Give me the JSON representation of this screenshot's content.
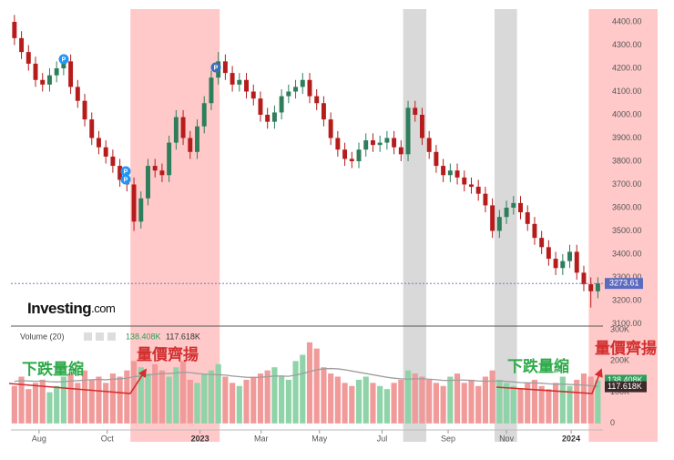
{
  "chart_data": {
    "type": "candlestick",
    "logo": "Investing",
    "logo_suffix": ".com",
    "xlim": [
      0,
      92
    ],
    "xticks": [
      {
        "value": 4,
        "label": "Aug"
      },
      {
        "value": 13.7,
        "label": "Oct"
      },
      {
        "value": 26.9,
        "label": "2023"
      },
      {
        "value": 35.6,
        "label": "Mar"
      },
      {
        "value": 43.9,
        "label": "May"
      },
      {
        "value": 52.8,
        "label": "Jul"
      },
      {
        "value": 62.2,
        "label": "Sep"
      },
      {
        "value": 70.5,
        "label": "Nov"
      },
      {
        "value": 79.7,
        "label": "2024"
      }
    ],
    "ylim": [
      3090,
      4455
    ],
    "yticks": [
      {
        "value": 3100,
        "label": "3100.00"
      },
      {
        "value": 3200,
        "label": "3200.00"
      },
      {
        "value": 3300,
        "label": "3300.00"
      },
      {
        "value": 3400,
        "label": "3400.00"
      },
      {
        "value": 3500,
        "label": "3500.00"
      },
      {
        "value": 3600,
        "label": "3600.00"
      },
      {
        "value": 3700,
        "label": "3700.00"
      },
      {
        "value": 3800,
        "label": "3800.00"
      },
      {
        "value": 3900,
        "label": "3900.00"
      },
      {
        "value": 4000,
        "label": "4000.00"
      },
      {
        "value": 4100,
        "label": "4100.00"
      },
      {
        "value": 4200,
        "label": "4200.00"
      },
      {
        "value": 4300,
        "label": "4300.00"
      },
      {
        "value": 4400,
        "label": "4400.00"
      }
    ],
    "up_color": "#2e7d5b",
    "down_color": "#b71c1c",
    "open": [
      4400,
      4330,
      4270,
      4220,
      4150,
      4130,
      4170,
      4200,
      4230,
      4120,
      4060,
      3980,
      3900,
      3860,
      3820,
      3780,
      3720,
      3700,
      3540,
      3640,
      3780,
      3760,
      3740,
      3880,
      3990,
      3900,
      3840,
      3950,
      4050,
      4160,
      4230,
      4180,
      4130,
      4150,
      4100,
      4070,
      4000,
      3970,
      4010,
      4080,
      4100,
      4120,
      4150,
      4080,
      4050,
      3980,
      3900,
      3850,
      3810,
      3800,
      3850,
      3890,
      3870,
      3880,
      3900,
      3860,
      3830,
      4030,
      4000,
      3900,
      3840,
      3780,
      3740,
      3760,
      3730,
      3700,
      3690,
      3660,
      3610,
      3500,
      3560,
      3600,
      3620,
      3580,
      3530,
      3470,
      3430,
      3380,
      3340,
      3370,
      3410,
      3320,
      3270,
      3240
    ],
    "high": [
      4430,
      4360,
      4300,
      4250,
      4180,
      4200,
      4230,
      4260,
      4260,
      4150,
      4090,
      4010,
      3930,
      3890,
      3850,
      3810,
      3750,
      3730,
      3670,
      3810,
      3810,
      3790,
      3910,
      4020,
      4020,
      3930,
      3980,
      4080,
      4190,
      4270,
      4260,
      4210,
      4180,
      4180,
      4130,
      4100,
      4030,
      4040,
      4110,
      4130,
      4150,
      4180,
      4180,
      4110,
      4080,
      4010,
      3930,
      3880,
      3840,
      3880,
      3920,
      3920,
      3910,
      3930,
      3930,
      3890,
      4060,
      4060,
      4030,
      3930,
      3870,
      3810,
      3790,
      3790,
      3760,
      3730,
      3720,
      3690,
      3640,
      3590,
      3630,
      3650,
      3650,
      3610,
      3560,
      3500,
      3460,
      3410,
      3400,
      3440,
      3440,
      3350,
      3300,
      3300
    ],
    "low": [
      4300,
      4240,
      4190,
      4120,
      4100,
      4100,
      4140,
      4170,
      4090,
      4030,
      3950,
      3870,
      3830,
      3790,
      3750,
      3690,
      3670,
      3500,
      3510,
      3610,
      3730,
      3710,
      3710,
      3850,
      3870,
      3810,
      3810,
      3920,
      4020,
      4130,
      4150,
      4100,
      4100,
      4070,
      4040,
      3970,
      3940,
      3940,
      3980,
      4050,
      4070,
      4090,
      4050,
      4020,
      3950,
      3870,
      3820,
      3780,
      3770,
      3770,
      3820,
      3840,
      3840,
      3850,
      3830,
      3800,
      3800,
      3970,
      3870,
      3810,
      3750,
      3710,
      3710,
      3700,
      3670,
      3660,
      3630,
      3580,
      3470,
      3470,
      3530,
      3570,
      3550,
      3500,
      3440,
      3400,
      3350,
      3310,
      3310,
      3340,
      3290,
      3240,
      3170,
      3210
    ],
    "close": [
      4330,
      4270,
      4220,
      4150,
      4130,
      4170,
      4200,
      4230,
      4120,
      4060,
      3980,
      3900,
      3860,
      3820,
      3780,
      3720,
      3700,
      3540,
      3640,
      3780,
      3760,
      3740,
      3880,
      3990,
      3900,
      3840,
      3950,
      4050,
      4160,
      4230,
      4180,
      4130,
      4150,
      4100,
      4070,
      4000,
      3970,
      4010,
      4080,
      4100,
      4120,
      4150,
      4080,
      4050,
      3980,
      3900,
      3850,
      3810,
      3800,
      3850,
      3890,
      3870,
      3880,
      3900,
      3860,
      3830,
      4030,
      4000,
      3900,
      3840,
      3780,
      3740,
      3760,
      3730,
      3700,
      3690,
      3660,
      3610,
      3500,
      3560,
      3600,
      3620,
      3580,
      3530,
      3470,
      3430,
      3380,
      3340,
      3370,
      3410,
      3320,
      3270,
      3240,
      3274
    ],
    "last_price": 3273.61,
    "last_price_color": "#5c6bc0",
    "highlights": [
      {
        "start": 17.0,
        "end": 29.7,
        "color": "#ffc9c9"
      },
      {
        "start": 55.8,
        "end": 59.1,
        "color": "#d9d9d9"
      },
      {
        "start": 68.8,
        "end": 72.0,
        "color": "#d9d9d9"
      },
      {
        "start": 82.2,
        "end": 92,
        "color": "#ffc9c9"
      }
    ],
    "events": [
      {
        "label": "P"
      },
      {
        "label": "P"
      },
      {
        "label": "P"
      },
      {
        "label": "P"
      }
    ],
    "volume": {
      "title": "Volume (20)",
      "ylim": [
        -15000,
        312000
      ],
      "yticks": [
        {
          "value": 0,
          "label": "0"
        },
        {
          "value": 100000,
          "label": "100K"
        },
        {
          "value": 200000,
          "label": "200K"
        },
        {
          "value": 300000,
          "label": "300K"
        }
      ],
      "up_color": "#8fd3a8",
      "down_color": "#f19a9a",
      "ma_color": "#9e9e9e",
      "values": [
        120000,
        150000,
        110000,
        130000,
        140000,
        100000,
        120000,
        150000,
        160000,
        130000,
        170000,
        140000,
        150000,
        130000,
        160000,
        150000,
        170000,
        200000,
        180000,
        160000,
        190000,
        170000,
        150000,
        180000,
        200000,
        140000,
        130000,
        160000,
        170000,
        190000,
        150000,
        130000,
        120000,
        140000,
        150000,
        160000,
        170000,
        180000,
        150000,
        140000,
        200000,
        220000,
        260000,
        240000,
        180000,
        160000,
        150000,
        130000,
        120000,
        140000,
        150000,
        130000,
        120000,
        110000,
        130000,
        140000,
        170000,
        160000,
        150000,
        140000,
        130000,
        120000,
        150000,
        160000,
        130000,
        140000,
        120000,
        150000,
        170000,
        140000,
        130000,
        120000,
        110000,
        130000,
        140000,
        120000,
        110000,
        130000,
        150000,
        120000,
        140000,
        160000,
        150000,
        138408
      ],
      "ma": [
        135000,
        137000,
        136000,
        135000,
        136000,
        134000,
        133000,
        134000,
        136000,
        137000,
        139000,
        140000,
        141000,
        140000,
        142000,
        143000,
        145000,
        150000,
        152000,
        155000,
        158000,
        160000,
        160000,
        162000,
        164000,
        163000,
        160000,
        158000,
        157000,
        156000,
        155000,
        152000,
        150000,
        148000,
        147000,
        148000,
        150000,
        152000,
        152000,
        151000,
        155000,
        160000,
        166000,
        172000,
        175000,
        176000,
        175000,
        172000,
        168000,
        164000,
        160000,
        156000,
        152000,
        148000,
        145000,
        143000,
        142000,
        143000,
        143000,
        142000,
        140000,
        138000,
        138000,
        139000,
        139000,
        138000,
        136000,
        135000,
        136000,
        136000,
        135000,
        133000,
        131000,
        130000,
        130000,
        129000,
        127000,
        126000,
        126000,
        125000,
        124000,
        123000,
        121000,
        117618
      ],
      "current": {
        "value": 138408,
        "label": "138.408K"
      },
      "current_ma": {
        "value": 117618,
        "label": "117.618K"
      }
    },
    "annotations": [
      {
        "text": "下跌量縮"
      },
      {
        "text": "量價齊揚"
      },
      {
        "text": "下跌量縮"
      },
      {
        "text": "量價齊揚"
      }
    ]
  }
}
